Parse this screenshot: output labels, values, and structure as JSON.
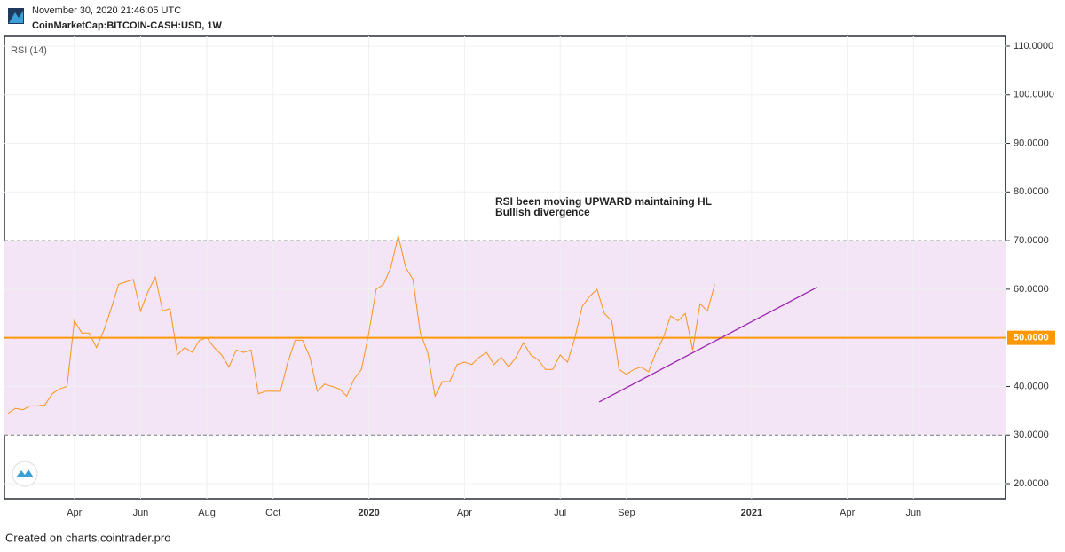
{
  "chart_data": {
    "type": "line",
    "timestamp": "November 30, 2020 21:46:05 UTC",
    "symbol": "CoinMarketCap:BITCOIN-CASH:USD, 1W",
    "annotation": [
      "RSI been moving UPWARD maintaining HL",
      "Bullish divergence"
    ],
    "footer": "Created on charts.cointrader.pro",
    "categories": [
      null,
      null,
      null,
      null,
      null,
      null,
      null,
      null,
      null,
      "Apr",
      null,
      null,
      null,
      null,
      null,
      null,
      null,
      null,
      "Jun",
      null,
      null,
      null,
      null,
      null,
      null,
      null,
      null,
      "Aug",
      null,
      null,
      null,
      null,
      null,
      null,
      null,
      null,
      "Oct",
      null,
      null,
      null,
      null,
      null,
      null,
      null,
      null,
      null,
      null,
      null,
      null,
      "2020",
      null,
      null,
      null,
      null,
      null,
      null,
      null,
      null,
      null,
      null,
      null,
      null,
      "Apr",
      null,
      null,
      null,
      null,
      null,
      null,
      null,
      null,
      null,
      null,
      null,
      null,
      "Jul",
      null,
      null,
      null,
      null,
      null,
      null,
      null,
      null,
      "Sep",
      null,
      null,
      null,
      null,
      null,
      null,
      null,
      null,
      null,
      null,
      null,
      null,
      null,
      null,
      null,
      null,
      "2021",
      null,
      null,
      null,
      null,
      null,
      null,
      null,
      null,
      null,
      null,
      null,
      null,
      "Apr",
      null,
      null,
      null,
      null,
      null,
      null,
      null,
      null,
      "Jun",
      null,
      null,
      null,
      null,
      null,
      null,
      null,
      null,
      null,
      null,
      null,
      null
    ],
    "series": [
      {
        "name": "RSI (14)",
        "color": "#f7941d",
        "values": [
          34.5,
          35.5,
          35.2,
          36,
          36,
          36.2,
          38.5,
          39.5,
          40,
          53.5,
          51,
          51,
          48,
          51.5,
          56,
          61,
          61.5,
          62,
          55.5,
          59.5,
          62.5,
          55.5,
          56,
          46.5,
          48,
          47,
          49.5,
          50,
          48,
          46.5,
          44,
          47.5,
          47,
          47.5,
          38.5,
          39,
          39,
          39,
          45,
          49.5,
          49.5,
          46,
          39,
          40.5,
          40,
          39.5,
          38,
          41.5,
          43.5,
          51,
          60,
          61,
          64.5,
          71,
          64.5,
          62,
          51,
          47,
          38,
          41,
          41,
          44.5,
          45,
          44.5,
          46,
          47,
          44.5,
          46,
          44,
          46,
          49,
          46.5,
          45.5,
          43.5,
          43.5,
          46.5,
          45,
          50,
          56.5,
          58.5,
          60,
          55,
          53.5,
          43.5,
          42.5,
          43.5,
          44,
          43,
          47,
          50,
          54.5,
          53.5,
          55,
          47.5,
          57,
          55.5,
          61,
          null,
          null,
          null,
          null,
          null,
          null,
          null,
          null,
          null,
          null,
          null,
          null,
          null,
          null,
          null,
          null,
          null,
          null,
          null,
          null,
          null,
          null,
          null,
          null,
          null,
          null,
          null,
          null,
          null,
          null,
          null,
          null,
          null,
          null,
          null,
          null,
          null,
          null,
          null
        ]
      }
    ],
    "ylim": [
      16.9,
      112
    ],
    "yticks": [
      {
        "value": 20,
        "label": "20.0000"
      },
      {
        "value": 30,
        "label": "30.0000"
      },
      {
        "value": 40,
        "label": "40.0000"
      },
      {
        "value": 60,
        "label": "60.0000"
      },
      {
        "value": 70,
        "label": "70.0000"
      },
      {
        "value": 80,
        "label": "80.0000"
      },
      {
        "value": 90,
        "label": "90.0000"
      },
      {
        "value": 100,
        "label": "100.0000"
      },
      {
        "value": 110,
        "label": "110.0000"
      }
    ],
    "band": {
      "upper": 70,
      "lower": 30,
      "color": "#f3e5f5"
    },
    "midline": {
      "value": 50,
      "label": "50.0000",
      "color": "#ff9800"
    },
    "trend_line": {
      "color": "#9c27b0",
      "x": [
        80.3,
        109.9
      ],
      "values": [
        36.8,
        60.4
      ]
    },
    "grid": true
  }
}
